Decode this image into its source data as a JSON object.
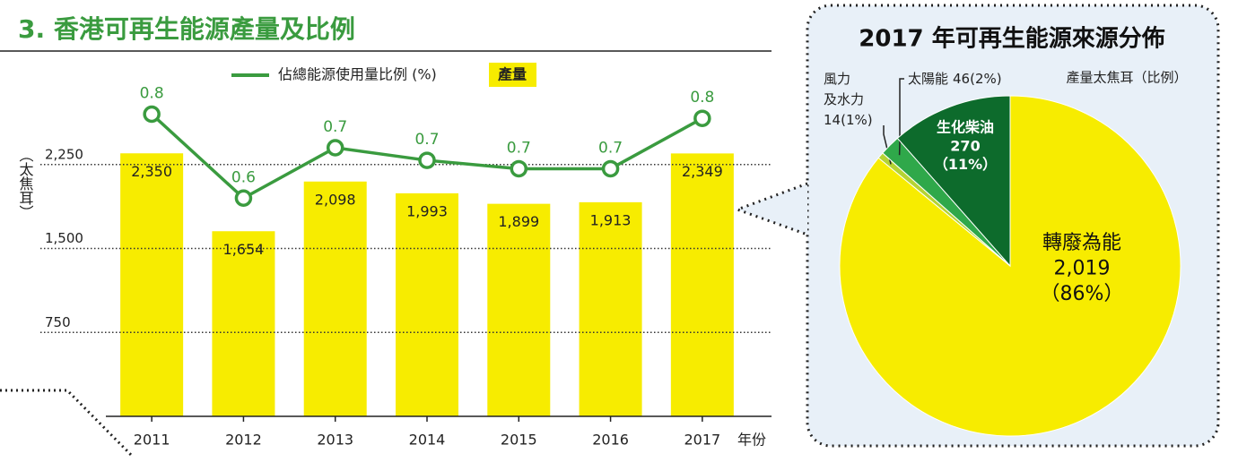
{
  "chart_data": [
    {
      "type": "bar",
      "title": "3. 香港可再生能源產量及比例",
      "y_label": "（太焦耳）",
      "x_label": "年份",
      "categories": [
        "2011",
        "2012",
        "2013",
        "2014",
        "2015",
        "2016",
        "2017"
      ],
      "series": [
        {
          "name": "佔總能源使用量比例 (%)",
          "color": "#3a9b3f",
          "axis": "y2",
          "values": [
            0.8,
            0.6,
            0.72,
            0.69,
            0.67,
            0.67,
            0.79
          ],
          "value_labels": [
            "0.8",
            "0.6",
            "0.7",
            "0.7",
            "0.7",
            "0.7",
            "0.8"
          ]
        },
        {
          "name": "產量",
          "color": "#f7ec00",
          "values": [
            2350,
            1654,
            2098,
            1993,
            1899,
            1913,
            2349
          ],
          "value_labels": [
            "2,350",
            "1,654",
            "2,098",
            "1,993",
            "1,899",
            "1,913",
            "2,349"
          ]
        }
      ],
      "ylim": [
        0,
        3000
      ],
      "yticks": [
        750,
        {
          "value": 1500,
          "label": "1,500"
        },
        {
          "value": 2250,
          "label": "2,250"
        }
      ],
      "y2lim": [
        0.08,
        0.88
      ],
      "grid": true
    },
    {
      "type": "pie",
      "title": "2017 年可再生能源來源分佈",
      "subtitle": "產量太焦耳（比例）",
      "categories": [
        "轉廢為能",
        "風力及水力",
        "太陽能",
        "生化柴油"
      ],
      "values": [
        2019,
        14,
        46,
        270
      ],
      "value_labels": [
        "2,019",
        "14",
        "46",
        "270"
      ],
      "percent_labels": [
        "（86%）",
        "(1%)",
        "(2%)",
        "（11%）"
      ],
      "colors": [
        "#f7ec00",
        "#b5d334",
        "#2fa84a",
        "#0d6b2c"
      ]
    }
  ]
}
